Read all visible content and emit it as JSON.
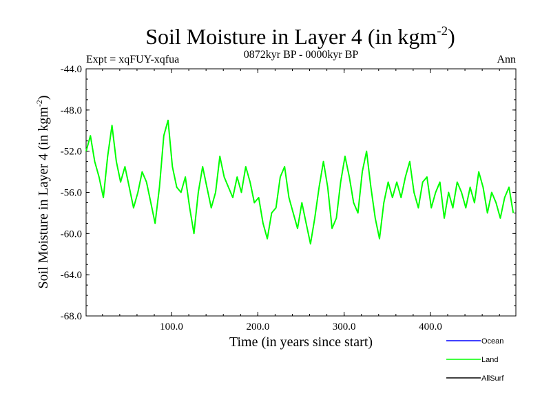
{
  "header": {
    "title_main": "Soil Moisture in Layer 4 (in kgm",
    "title_sup": "-2",
    "title_close": ")",
    "expt_label": "Expt = xqFUY-xqfua",
    "period_label": "0872kyr BP - 0000kyr BP",
    "season_label": "Ann"
  },
  "colors": {
    "ocean": "#0000ff",
    "land": "#00ff00",
    "allsurf": "#000000"
  },
  "chart_data": {
    "type": "line",
    "title": "Soil Moisture in Layer 4 (in kgm-2)",
    "xlabel": "Time (in years since start)",
    "ylabel_main": "Soil Moisture in Layer 4 (in kgm",
    "ylabel_sup": "-2",
    "ylabel_close": ")",
    "xlim": [
      1,
      499
    ],
    "ylim": [
      -68,
      -44
    ],
    "x_ticks": [
      100,
      200,
      300,
      400
    ],
    "x_tick_labels": [
      "100.0",
      "200.0",
      "300.0",
      "400.0"
    ],
    "y_ticks": [
      -44,
      -48,
      -52,
      -56,
      -60,
      -64,
      -68
    ],
    "y_tick_labels": [
      "-44.0",
      "-48.0",
      "-52.0",
      "-56.0",
      "-60.0",
      "-64.0",
      "-68.0"
    ],
    "x_start": 1,
    "x_step": 5,
    "legend": [
      {
        "name": "Ocean",
        "color": "#0000ff"
      },
      {
        "name": "Land",
        "color": "#00ff00"
      },
      {
        "name": "AllSurf",
        "color": "#000000"
      }
    ],
    "series": [
      {
        "name": "Land",
        "color": "#00ff00",
        "values": [
          -52.0,
          -50.5,
          -53.0,
          -54.5,
          -56.5,
          -52.5,
          -49.5,
          -53.0,
          -55.0,
          -53.5,
          -55.5,
          -57.5,
          -56.0,
          -54.0,
          -55.0,
          -57.0,
          -59.0,
          -55.5,
          -50.5,
          -49.0,
          -53.5,
          -55.5,
          -56.0,
          -54.5,
          -57.5,
          -60.0,
          -56.0,
          -53.5,
          -55.5,
          -57.5,
          -56.0,
          -52.5,
          -54.5,
          -55.5,
          -56.5,
          -54.5,
          -56.0,
          -53.5,
          -55.0,
          -57.0,
          -56.5,
          -59.0,
          -60.5,
          -58.0,
          -57.5,
          -54.5,
          -53.5,
          -56.5,
          -58.0,
          -59.5,
          -57.0,
          -59.0,
          -61.0,
          -58.5,
          -55.5,
          -53.0,
          -55.5,
          -59.5,
          -58.5,
          -55.0,
          -52.5,
          -54.5,
          -57.0,
          -58.0,
          -54.0,
          -52.0,
          -55.5,
          -58.5,
          -60.5,
          -57.0,
          -55.0,
          -56.5,
          -55.0,
          -56.5,
          -54.5,
          -53.0,
          -56.0,
          -57.5,
          -55.0,
          -54.5,
          -57.5,
          -56.0,
          -55.0,
          -58.5,
          -56.0,
          -57.5,
          -55.0,
          -56.0,
          -57.5,
          -55.5,
          -57.0,
          -54.0,
          -55.5,
          -58.0,
          -56.0,
          -57.0,
          -58.5,
          -56.5,
          -55.5,
          -58.0
        ]
      },
      {
        "name": "Ocean",
        "color": "#0000ff",
        "values": []
      },
      {
        "name": "AllSurf",
        "color": "#000000",
        "values": []
      }
    ]
  }
}
